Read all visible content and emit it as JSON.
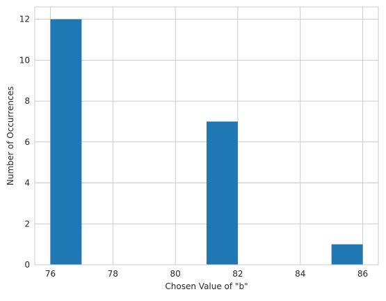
{
  "chart_data": {
    "type": "bar",
    "title": "",
    "xlabel": "Chosen Value of \"b\"",
    "ylabel": "Number of Occurrences",
    "x_ticks": [
      "76",
      "78",
      "80",
      "82",
      "84",
      "86"
    ],
    "y_ticks": [
      "0",
      "2",
      "4",
      "6",
      "8",
      "10",
      "12"
    ],
    "xlim": [
      75.5,
      86.5
    ],
    "ylim": [
      0,
      12.6
    ],
    "bins": [
      {
        "start": 76,
        "end": 77,
        "value": 12
      },
      {
        "start": 77,
        "end": 78,
        "value": 0
      },
      {
        "start": 78,
        "end": 79,
        "value": 0
      },
      {
        "start": 79,
        "end": 80,
        "value": 0
      },
      {
        "start": 80,
        "end": 81,
        "value": 0
      },
      {
        "start": 81,
        "end": 82,
        "value": 7
      },
      {
        "start": 82,
        "end": 83,
        "value": 0
      },
      {
        "start": 83,
        "end": 84,
        "value": 0
      },
      {
        "start": 84,
        "end": 85,
        "value": 0
      },
      {
        "start": 85,
        "end": 86,
        "value": 1
      }
    ],
    "grid": true,
    "bar_color": "#1f77b4",
    "grid_color": "#cccccc",
    "axes_edge_color": "#cccccc"
  }
}
